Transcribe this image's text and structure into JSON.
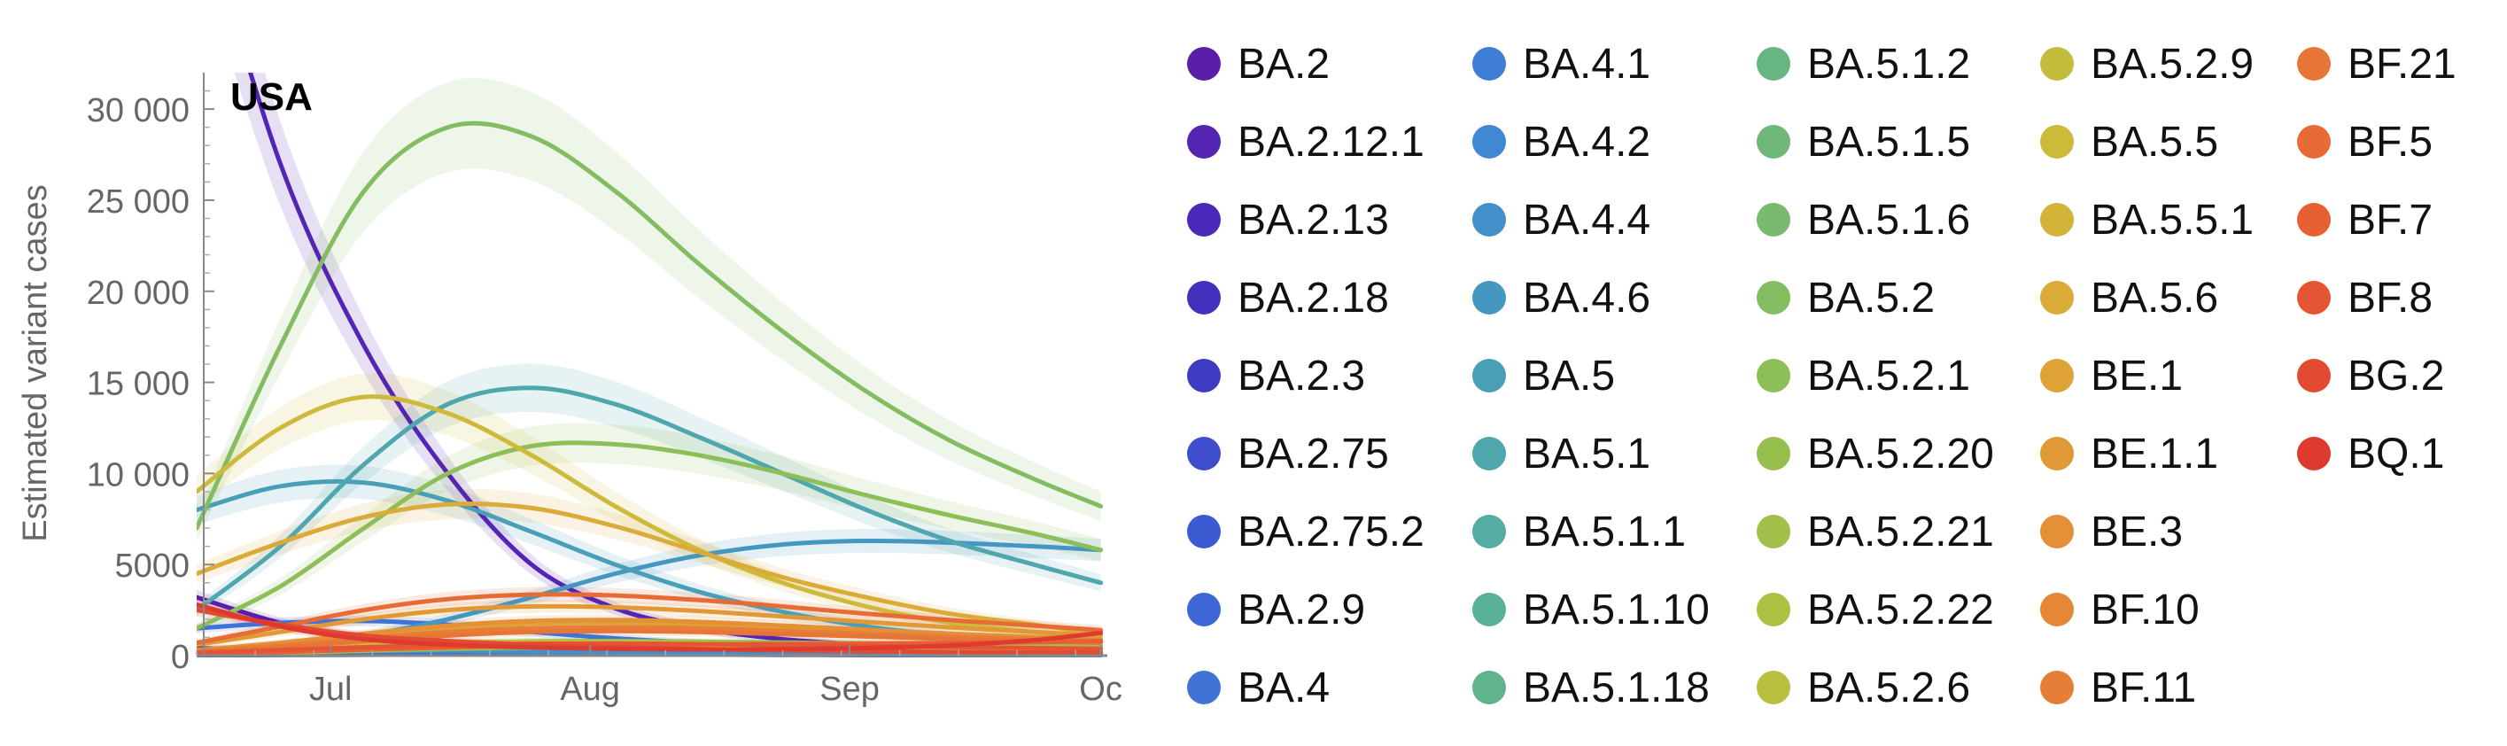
{
  "chart_data": {
    "type": "line",
    "title": "USA",
    "ylabel": "Estimated variant cases",
    "xlabel": "",
    "x_ticks": [
      "Jul",
      "Aug",
      "Sep",
      "Oc"
    ],
    "y_ticks": [
      "0",
      "5000",
      "10 000",
      "15 000",
      "20 000",
      "25 000",
      "30 000"
    ],
    "ylim": [
      0,
      32000
    ],
    "grid": false,
    "legend_position": "right",
    "x": [
      "2022-06-15",
      "2022-06-25",
      "2022-07-05",
      "2022-07-15",
      "2022-07-25",
      "2022-08-04",
      "2022-08-14",
      "2022-08-24",
      "2022-09-03",
      "2022-09-13",
      "2022-09-23",
      "2022-10-01"
    ],
    "series": [
      {
        "name": "BA.2",
        "color": "#5a1fa8",
        "values": [
          3200,
          1800,
          1000,
          600,
          400,
          300,
          220,
          170,
          130,
          100,
          80,
          60
        ]
      },
      {
        "name": "BA.2.12.1",
        "color": "#5424b3",
        "values": [
          42000,
          27000,
          17000,
          10000,
          5000,
          2600,
          1500,
          900,
          600,
          400,
          280,
          200
        ]
      },
      {
        "name": "BA.2.13",
        "color": "#4a28b8",
        "values": [
          300,
          250,
          200,
          150,
          120,
          90,
          70,
          55,
          40,
          30,
          25,
          20
        ]
      },
      {
        "name": "BA.2.18",
        "color": "#4330bd",
        "values": [
          400,
          320,
          250,
          190,
          140,
          110,
          80,
          60,
          45,
          35,
          28,
          22
        ]
      },
      {
        "name": "BA.2.3",
        "color": "#3f3cc4",
        "values": [
          250,
          200,
          160,
          120,
          90,
          70,
          55,
          40,
          30,
          24,
          18,
          14
        ]
      },
      {
        "name": "BA.2.75",
        "color": "#3d4dcc",
        "values": [
          100,
          120,
          150,
          190,
          240,
          300,
          380,
          470,
          560,
          660,
          760,
          850
        ]
      },
      {
        "name": "BA.2.75.2",
        "color": "#3c5ad1",
        "values": [
          20,
          30,
          45,
          65,
          95,
          140,
          200,
          280,
          380,
          500,
          640,
          780
        ]
      },
      {
        "name": "BA.2.9",
        "color": "#3d66d6",
        "values": [
          350,
          280,
          220,
          170,
          130,
          100,
          75,
          58,
          44,
          34,
          26,
          20
        ]
      },
      {
        "name": "BA.4",
        "color": "#3f73d6",
        "values": [
          1500,
          1800,
          1900,
          1700,
          1300,
          950,
          700,
          500,
          350,
          250,
          180,
          130
        ]
      },
      {
        "name": "BA.4.1",
        "color": "#3f7dd6",
        "values": [
          300,
          360,
          380,
          340,
          270,
          200,
          150,
          110,
          80,
          60,
          45,
          35
        ]
      },
      {
        "name": "BA.4.2",
        "color": "#4187d2",
        "values": [
          200,
          240,
          260,
          240,
          200,
          150,
          110,
          80,
          60,
          45,
          34,
          26
        ]
      },
      {
        "name": "BA.4.4",
        "color": "#428fca",
        "values": [
          200,
          260,
          300,
          290,
          250,
          200,
          150,
          110,
          80,
          60,
          45,
          35
        ]
      },
      {
        "name": "BA.4.6",
        "color": "#4597c2",
        "values": [
          200,
          500,
          1100,
          2000,
          3200,
          4500,
          5500,
          6100,
          6300,
          6200,
          6000,
          5800
        ]
      },
      {
        "name": "BA.5",
        "color": "#4a9fb8",
        "values": [
          8000,
          9300,
          9500,
          8500,
          6800,
          5000,
          3500,
          2400,
          1600,
          1100,
          750,
          500
        ]
      },
      {
        "name": "BA.5.1",
        "color": "#4fa6ad",
        "values": [
          2500,
          6000,
          10500,
          13800,
          14700,
          13800,
          12000,
          10000,
          8000,
          6300,
          5000,
          4000
        ]
      },
      {
        "name": "BA.5.1.1",
        "color": "#54aca3",
        "values": [
          300,
          380,
          450,
          500,
          520,
          500,
          460,
          410,
          360,
          310,
          270,
          240
        ]
      },
      {
        "name": "BA.5.1.10",
        "color": "#5ab198",
        "values": [
          100,
          200,
          350,
          500,
          620,
          680,
          690,
          660,
          610,
          560,
          510,
          470
        ]
      },
      {
        "name": "BA.5.1.18",
        "color": "#60b48d",
        "values": [
          80,
          150,
          250,
          350,
          420,
          460,
          470,
          450,
          420,
          390,
          360,
          330
        ]
      },
      {
        "name": "BA.5.1.2",
        "color": "#67b682",
        "values": [
          200,
          350,
          500,
          600,
          640,
          620,
          570,
          510,
          450,
          390,
          340,
          300
        ]
      },
      {
        "name": "BA.5.1.5",
        "color": "#6fb879",
        "values": [
          150,
          280,
          420,
          540,
          600,
          600,
          570,
          520,
          470,
          420,
          370,
          330
        ]
      },
      {
        "name": "BA.5.1.6",
        "color": "#79ba6f",
        "values": [
          100,
          200,
          330,
          460,
          550,
          590,
          590,
          560,
          520,
          480,
          440,
          400
        ]
      },
      {
        "name": "BA.5.2",
        "color": "#84bc62",
        "values": [
          7000,
          17000,
          25500,
          29000,
          28500,
          25500,
          21500,
          17800,
          14500,
          11800,
          9700,
          8200
        ]
      },
      {
        "name": "BA.5.2.1",
        "color": "#8dbe58",
        "values": [
          1500,
          3800,
          7000,
          10000,
          11500,
          11600,
          11000,
          10000,
          8800,
          7700,
          6700,
          5800
        ]
      },
      {
        "name": "BA.5.2.20",
        "color": "#97bf4e",
        "values": [
          150,
          300,
          500,
          680,
          780,
          800,
          770,
          720,
          660,
          600,
          540,
          490
        ]
      },
      {
        "name": "BA.5.2.21",
        "color": "#a2c049",
        "values": [
          100,
          220,
          380,
          520,
          600,
          630,
          610,
          570,
          520,
          470,
          430,
          390
        ]
      },
      {
        "name": "BA.5.2.22",
        "color": "#aec042",
        "values": [
          80,
          160,
          280,
          400,
          480,
          510,
          500,
          470,
          430,
          390,
          350,
          320
        ]
      },
      {
        "name": "BA.5.2.6",
        "color": "#b9bf3e",
        "values": [
          200,
          380,
          560,
          700,
          760,
          740,
          680,
          610,
          540,
          470,
          410,
          360
        ]
      },
      {
        "name": "BA.5.2.9",
        "color": "#c4bd3b",
        "values": [
          150,
          300,
          480,
          640,
          720,
          720,
          680,
          620,
          560,
          500,
          450,
          400
        ]
      },
      {
        "name": "BA.5.5",
        "color": "#cdb93a",
        "values": [
          9000,
          12500,
          14200,
          13300,
          11000,
          8200,
          5800,
          4000,
          2700,
          1800,
          1300,
          900
        ]
      },
      {
        "name": "BA.5.5.1",
        "color": "#d4b339",
        "values": [
          300,
          500,
          650,
          700,
          660,
          560,
          450,
          350,
          270,
          210,
          160,
          120
        ]
      },
      {
        "name": "BA.5.6",
        "color": "#daab38",
        "values": [
          4500,
          6200,
          7600,
          8300,
          8100,
          7100,
          5700,
          4300,
          3200,
          2300,
          1700,
          1200
        ]
      },
      {
        "name": "BE.1",
        "color": "#dea237",
        "values": [
          300,
          650,
          1100,
          1500,
          1750,
          1800,
          1700,
          1500,
          1300,
          1100,
          950,
          800
        ]
      },
      {
        "name": "BE.1.1",
        "color": "#e19937",
        "values": [
          600,
          1300,
          2000,
          2500,
          2700,
          2650,
          2450,
          2150,
          1850,
          1550,
          1300,
          1100
        ]
      },
      {
        "name": "BE.3",
        "color": "#e39037",
        "values": [
          300,
          700,
          1200,
          1650,
          1900,
          1950,
          1850,
          1650,
          1420,
          1200,
          1020,
          870
        ]
      },
      {
        "name": "BF.10",
        "color": "#e58737",
        "values": [
          200,
          500,
          900,
          1250,
          1450,
          1500,
          1450,
          1300,
          1150,
          1000,
          870,
          760
        ]
      },
      {
        "name": "BF.11",
        "color": "#e67e37",
        "values": [
          250,
          550,
          950,
          1300,
          1500,
          1550,
          1500,
          1350,
          1200,
          1040,
          900,
          790
        ]
      },
      {
        "name": "BF.21",
        "color": "#e77536",
        "values": [
          200,
          450,
          800,
          1100,
          1300,
          1350,
          1300,
          1180,
          1050,
          920,
          800,
          700
        ]
      },
      {
        "name": "BF.5",
        "color": "#e76b35",
        "values": [
          700,
          1600,
          2500,
          3100,
          3350,
          3300,
          3050,
          2700,
          2300,
          1950,
          1650,
          1400
        ]
      },
      {
        "name": "BF.7",
        "color": "#e66034",
        "values": [
          100,
          200,
          330,
          450,
          540,
          590,
          620,
          640,
          660,
          690,
          740,
          800
        ]
      },
      {
        "name": "BF.8",
        "color": "#e45533",
        "values": [
          150,
          300,
          460,
          580,
          650,
          660,
          630,
          580,
          520,
          470,
          420,
          380
        ]
      },
      {
        "name": "BG.2",
        "color": "#e24a32",
        "values": [
          2500,
          1700,
          1100,
          800,
          600,
          460,
          360,
          290,
          240,
          200,
          170,
          150
        ]
      },
      {
        "name": "BQ.1",
        "color": "#df3a2f",
        "values": [
          2800,
          1600,
          900,
          600,
          450,
          370,
          340,
          350,
          420,
          560,
          850,
          1250
        ]
      }
    ]
  }
}
